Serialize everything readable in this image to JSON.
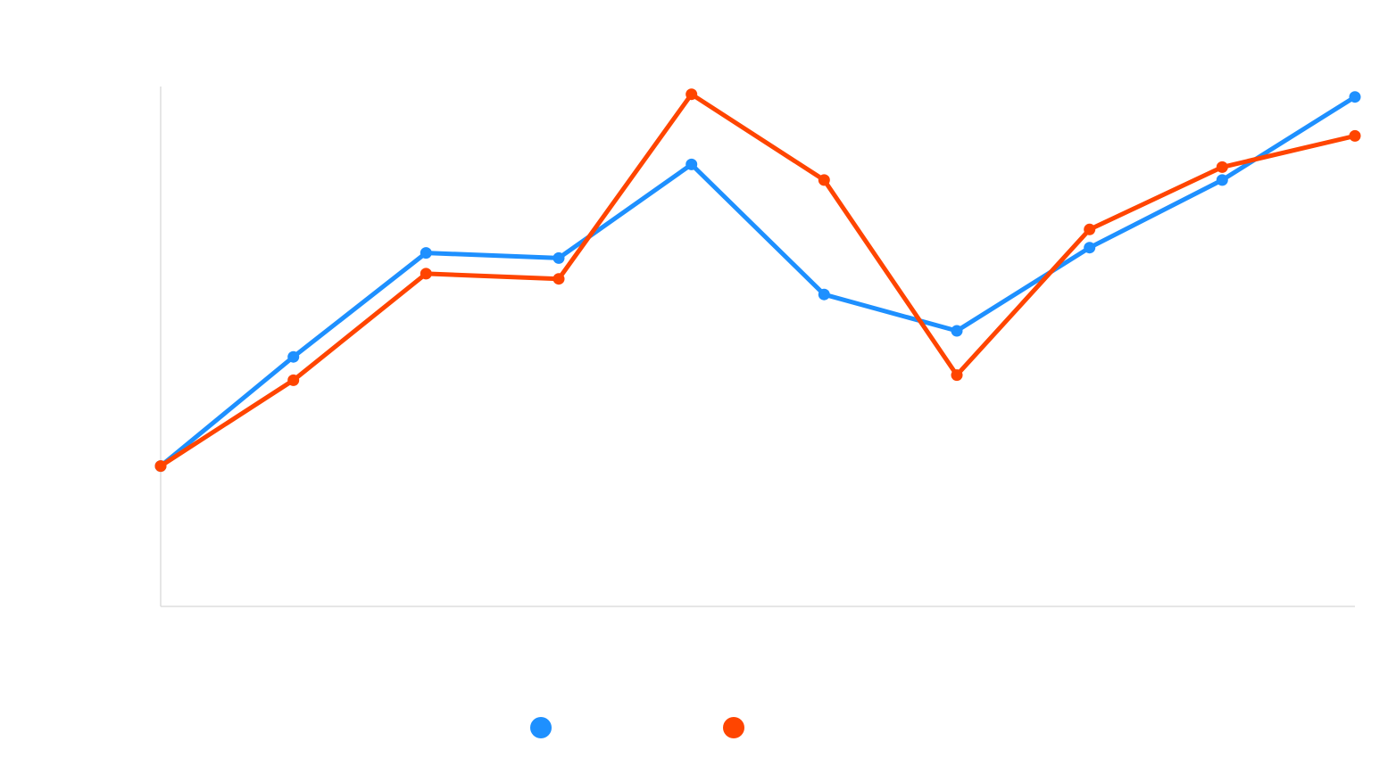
{
  "chart_data": {
    "type": "line",
    "title": "",
    "xlabel": "",
    "ylabel": "",
    "x": [
      1,
      2,
      3,
      4,
      5,
      6,
      7,
      8,
      9,
      10
    ],
    "ylim": [
      0,
      100
    ],
    "grid": false,
    "legend_position": "bottom-center",
    "series": [
      {
        "color": "#1E90FF",
        "values": [
          27,
          48,
          68,
          67,
          85,
          60,
          53,
          69,
          82,
          98
        ]
      },
      {
        "color": "#FF4500",
        "values": [
          27,
          43.5,
          64,
          63,
          98.5,
          82,
          44.5,
          72.5,
          84.5,
          90.5
        ]
      }
    ]
  }
}
